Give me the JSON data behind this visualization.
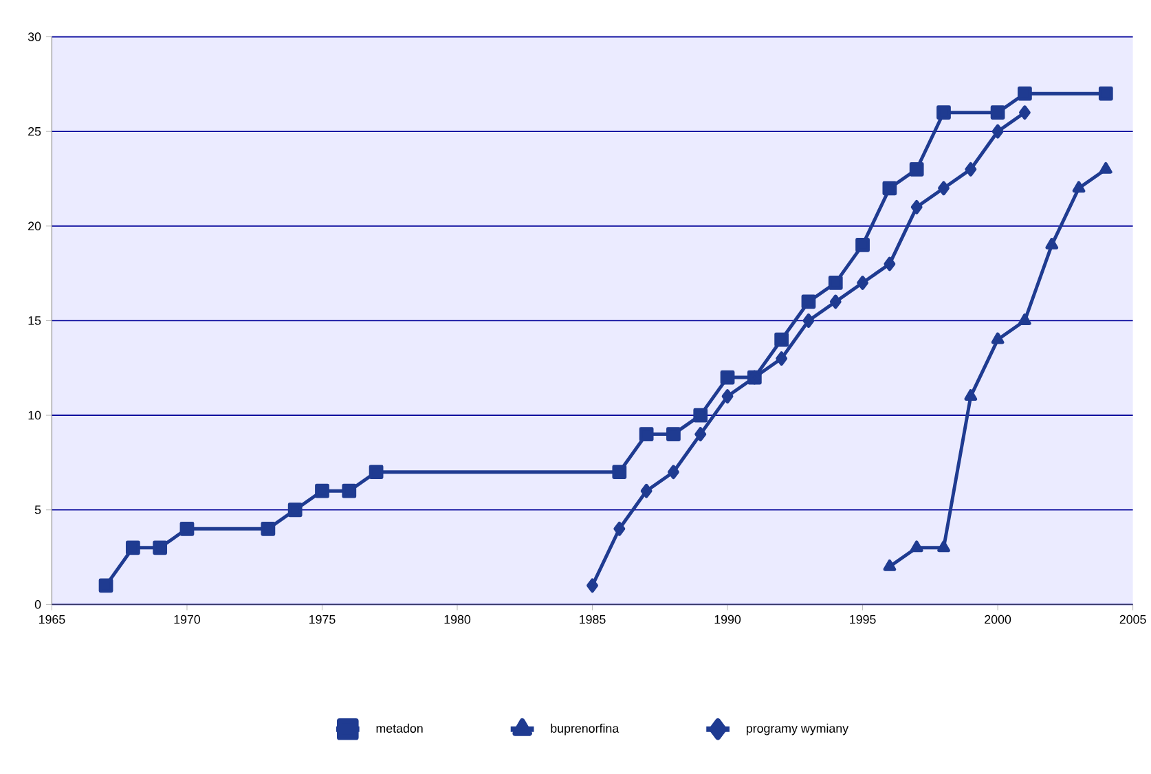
{
  "chart_data": {
    "type": "line",
    "xlim": [
      1965,
      2005
    ],
    "ylim": [
      0,
      30
    ],
    "xticks": [
      1965,
      1970,
      1975,
      1980,
      1985,
      1990,
      1995,
      2000,
      2005
    ],
    "yticks": [
      0,
      5,
      10,
      15,
      20,
      25,
      30
    ],
    "grid": "y",
    "legend": "bottom",
    "line_style": "solid",
    "series": [
      {
        "name": "metadon",
        "color": "#1f3b91",
        "marker": "square",
        "x": [
          1967,
          1968,
          1969,
          1970,
          1973,
          1974,
          1975,
          1976,
          1977,
          1986,
          1987,
          1988,
          1989,
          1990,
          1991,
          1992,
          1993,
          1994,
          1995,
          1996,
          1997,
          1998,
          2000,
          2001,
          2004
        ],
        "values": [
          1,
          3,
          3,
          4,
          4,
          5,
          6,
          6,
          7,
          7,
          9,
          9,
          10,
          12,
          12,
          14,
          16,
          17,
          19,
          22,
          23,
          26,
          26,
          27,
          27
        ]
      },
      {
        "name": "buprenorfina",
        "color": "#1f3b91",
        "marker": "triangle",
        "x": [
          1996,
          1997,
          1998,
          1999,
          2000,
          2001,
          2002,
          2003,
          2004
        ],
        "values": [
          2,
          3,
          3,
          11,
          14,
          15,
          19,
          22,
          23
        ]
      },
      {
        "name": "programy wymiany",
        "color": "#1f3b91",
        "marker": "diamond",
        "x": [
          1985,
          1986,
          1987,
          1988,
          1989,
          1990,
          1991,
          1992,
          1993,
          1994,
          1995,
          1996,
          1997,
          1998,
          1999,
          2000,
          2001
        ],
        "values": [
          1,
          4,
          6,
          7,
          9,
          11,
          12,
          13,
          15,
          16,
          17,
          18,
          21,
          22,
          23,
          25,
          26
        ]
      }
    ]
  }
}
